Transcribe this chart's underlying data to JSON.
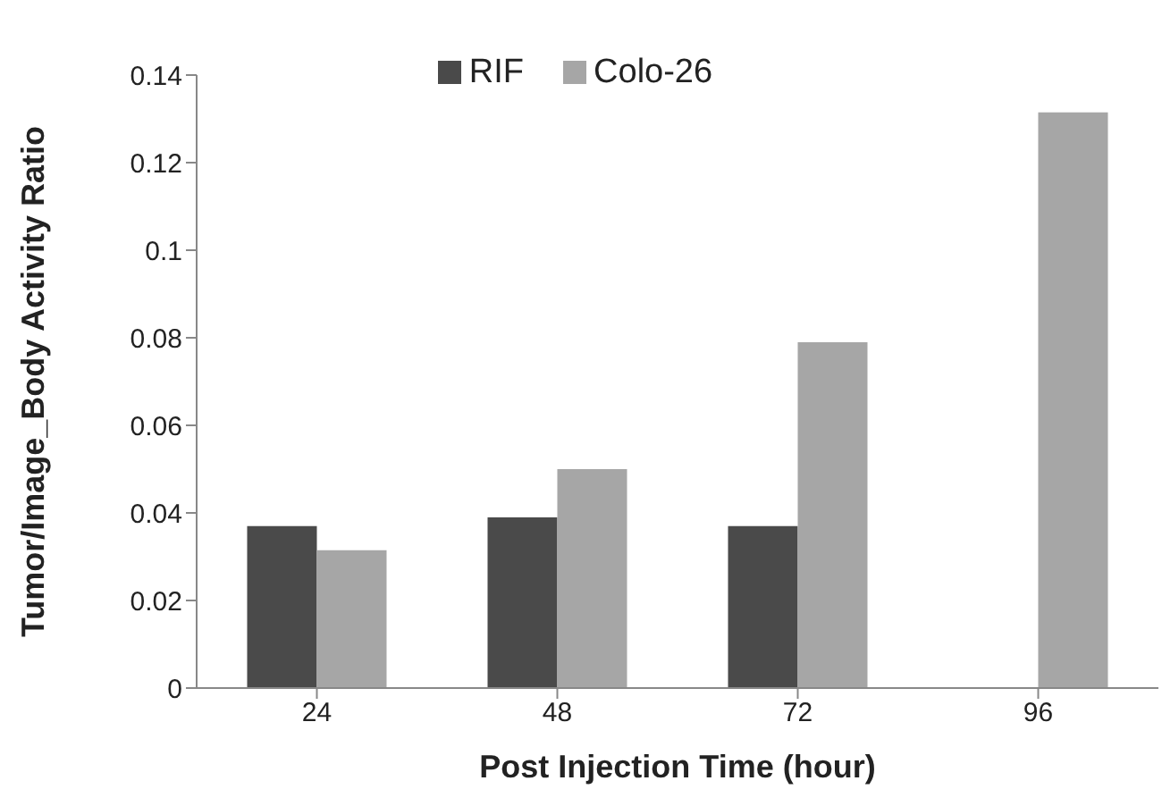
{
  "chart_data": {
    "type": "bar",
    "xlabel": "Post Injection Time (hour)",
    "ylabel": "Tumor/Image_Body Activity Ratio",
    "categories": [
      "24",
      "48",
      "72",
      "96"
    ],
    "series": [
      {
        "name": "RIF",
        "color": "#4a4a4a",
        "values": [
          0.037,
          0.039,
          0.037,
          null
        ]
      },
      {
        "name": "Colo-26",
        "color": "#a6a6a6",
        "values": [
          0.0315,
          0.05,
          0.079,
          0.1315
        ]
      }
    ],
    "ylim": [
      0,
      0.14
    ],
    "yticks": [
      0,
      0.02,
      0.04,
      0.06,
      0.08,
      0.1,
      0.12,
      0.14
    ],
    "grid": false,
    "legend": "top"
  }
}
